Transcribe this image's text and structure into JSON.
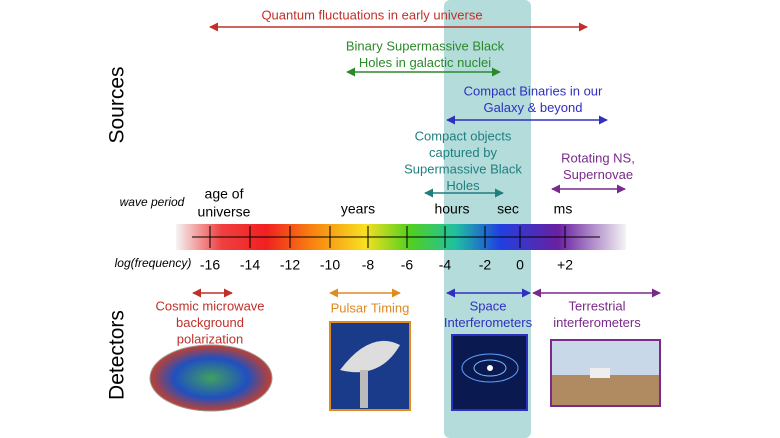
{
  "labels": {
    "sources": "Sources",
    "detectors": "Detectors",
    "wave_period": "wave period",
    "log_frequency": "log(frequency)"
  },
  "sources": [
    {
      "lines": [
        "Quantum fluctuations in early universe"
      ]
    },
    {
      "lines": [
        "Binary Supermassive Black",
        "Holes in galactic nuclei"
      ]
    },
    {
      "lines": [
        "Compact Binaries in our",
        "Galaxy & beyond"
      ]
    },
    {
      "lines": [
        "Compact objects",
        "captured by",
        "Supermassive Black",
        "Holes"
      ]
    },
    {
      "lines": [
        "Rotating NS,",
        "Supernovae"
      ]
    }
  ],
  "periods": [
    {
      "lines": [
        "age of",
        "universe"
      ]
    },
    {
      "lines": [
        "years"
      ]
    },
    {
      "lines": [
        "hours"
      ]
    },
    {
      "lines": [
        "sec"
      ]
    },
    {
      "lines": [
        "ms"
      ]
    }
  ],
  "frequency_ticks": [
    "-16",
    "-14",
    "-12",
    "-10",
    "-8",
    "-6",
    "-4",
    "-2",
    "0",
    "+2"
  ],
  "detectors": [
    {
      "lines": [
        "Cosmic microwave",
        "background",
        "polarization"
      ]
    },
    {
      "lines": [
        "Pulsar Timing"
      ]
    },
    {
      "lines": [
        "Space",
        "Interferometers"
      ]
    },
    {
      "lines": [
        "Terrestrial",
        "interferometers"
      ]
    }
  ]
}
